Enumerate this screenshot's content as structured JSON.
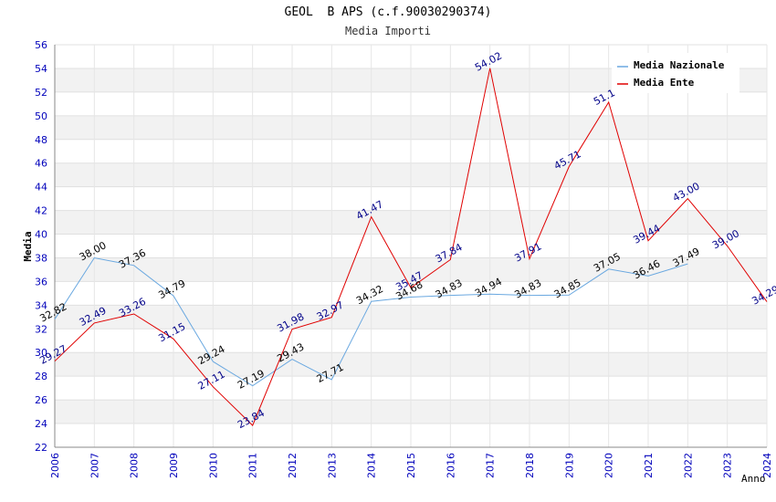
{
  "chart_data": {
    "type": "line",
    "title": "GEOL  B APS (c.f.90030290374)",
    "subtitle": "Media Importi",
    "xlabel": "Anno",
    "ylabel": "Media",
    "ylim": [
      22,
      56
    ],
    "ytick_step": 2,
    "categories": [
      "2006",
      "2007",
      "2008",
      "2009",
      "2010",
      "2011",
      "2012",
      "2013",
      "2014",
      "2015",
      "2016",
      "2017",
      "2018",
      "2019",
      "2020",
      "2021",
      "2022",
      "2023",
      "2024"
    ],
    "series": [
      {
        "name": "Media Nazionale",
        "color": "#6aa8e0",
        "values": [
          32.82,
          38.0,
          37.36,
          34.79,
          29.24,
          27.19,
          29.43,
          27.71,
          34.32,
          34.68,
          34.83,
          34.94,
          34.83,
          34.85,
          37.05,
          36.46,
          37.49,
          null,
          null
        ],
        "labels": [
          "32.82",
          "38.00",
          "37.36",
          "34.79",
          "29.24",
          "27.19",
          "29.43",
          "27.71",
          "34.32",
          "34.68",
          "34.83",
          "34.94",
          "34.83",
          "34.85",
          "37.05",
          "36.46",
          "37.49",
          "",
          ""
        ]
      },
      {
        "name": "Media Ente",
        "color": "#e00000",
        "values": [
          29.27,
          32.49,
          33.26,
          31.15,
          27.11,
          23.84,
          31.98,
          32.97,
          41.47,
          35.47,
          37.84,
          54.02,
          37.91,
          45.71,
          51.14,
          39.44,
          43.0,
          39.0,
          34.29
        ],
        "labels": [
          "29.27",
          "32.49",
          "33.26",
          "31.15",
          "27.11",
          "23.84",
          "31.98",
          "32.97",
          "41.47",
          "35.47",
          "37.84",
          "54.02",
          "37.91",
          "45.71",
          "51.14",
          "39.44",
          "43.00",
          "39.00",
          "34.29"
        ]
      }
    ],
    "legend": "top-right",
    "grid": true
  }
}
